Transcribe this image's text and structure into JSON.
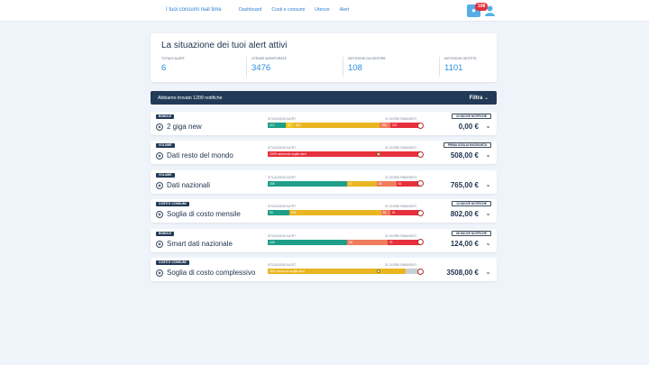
{
  "topbar": {
    "brand": "I tuoi consumi real time",
    "nav": [
      "Dashboard",
      "Costi e consumi",
      "Utenze",
      "Alert"
    ],
    "notification_count": "108",
    "icons": [
      "bell-icon",
      "user-icon"
    ]
  },
  "summary": {
    "title": "La situazione dei tuoi alert attivi",
    "stats": [
      {
        "label": "TOTALE ALERT",
        "value": "6"
      },
      {
        "label": "UTENZE MONITORATE",
        "value": "3476"
      },
      {
        "label": "NOTIFICHE DA GESTIRE",
        "value": "108"
      },
      {
        "label": "NOTIFICHE GESTITE",
        "value": "1101"
      }
    ]
  },
  "results": {
    "found_text": "Abbiamo trovato 1209 notifiche",
    "filter_label": "Filtra"
  },
  "bar_labels": {
    "status": "SITUAZIONE ALERT",
    "days": "31 GIORNI RIMANENTI"
  },
  "cards": [
    {
      "tag": "BUNDLE",
      "title": "2 giga new",
      "days_label": "10 GIORNI RIMANENTI",
      "notice": "23 NUOVE NOTIFICHE",
      "amount": "0,00 €",
      "segments": [
        {
          "label": "113",
          "fraction": 0.12,
          "color": "#1f9e89"
        },
        {
          "label": "33",
          "fraction": 0.05,
          "color": "#f0c419"
        },
        {
          "label": "603",
          "fraction": 0.56,
          "color": "#e9b520"
        },
        {
          "label": "196",
          "fraction": 0.07,
          "color": "#f07c5b"
        },
        {
          "label": "237",
          "fraction": 0.2,
          "color": "#e6303c"
        }
      ]
    },
    {
      "tag": "VOLUME",
      "title": "Dati resto del mondo",
      "days_label": "31 GIORNI RIMANENTI",
      "notice": "PRIMA SOGLIA RAGGIUNTA",
      "amount": "508,00 €",
      "segments": [
        {
          "label": "100% annuncio soglia alert",
          "fraction": 1.0,
          "color": "#e6303c"
        }
      ],
      "dot": 0.71
    },
    {
      "tag": "VOLUME",
      "title": "Dati nazionali",
      "days_label": "31 GIORNI RIMANENTI",
      "notice": "",
      "amount": "765,00 €",
      "segments": [
        {
          "label": "155",
          "fraction": 0.52,
          "color": "#1f9e89"
        },
        {
          "label": "61",
          "fraction": 0.19,
          "color": "#e9b520"
        },
        {
          "label": "26",
          "fraction": 0.13,
          "color": "#f07c5b"
        },
        {
          "label": "51",
          "fraction": 0.16,
          "color": "#e6303c"
        }
      ]
    },
    {
      "tag": "COSTI E CONSUMI",
      "title": "Soglia di costo mensile",
      "days_label": "31 GIORNI RIMANENTI",
      "notice": "13 NUOVE NOTIFICHE",
      "amount": "802,00 €",
      "segments": [
        {
          "label": "90",
          "fraction": 0.14,
          "color": "#1f9e89"
        },
        {
          "label": "508",
          "fraction": 0.6,
          "color": "#e9b520"
        },
        {
          "label": "51",
          "fraction": 0.06,
          "color": "#f07c5b"
        },
        {
          "label": "51",
          "fraction": 0.2,
          "color": "#e6303c"
        }
      ]
    },
    {
      "tag": "BUNDLE",
      "title": "Smart dati nazionale",
      "days_label": "31 GIORNI RIMANENTI",
      "notice": "68 NUOVE NOTIFICHE",
      "amount": "124,00 €",
      "segments": [
        {
          "label": "100",
          "fraction": 0.52,
          "color": "#1f9e89"
        },
        {
          "label": "60",
          "fraction": 0.26,
          "color": "#f07c5b"
        },
        {
          "label": "75",
          "fraction": 0.22,
          "color": "#e6303c"
        }
      ]
    },
    {
      "tag": "COSTI E CONSUMI",
      "title": "Soglia di costo complessivo",
      "days_label": "31 GIORNI RIMANENTI",
      "notice": "",
      "amount": "3508,00 €",
      "segments": [
        {
          "label": "95% annuncio soglia alert",
          "fraction": 0.9,
          "color": "#e9b520"
        },
        {
          "label": "",
          "fraction": 0.1,
          "color": "#c9cfd6"
        }
      ],
      "dot": 0.71
    }
  ]
}
